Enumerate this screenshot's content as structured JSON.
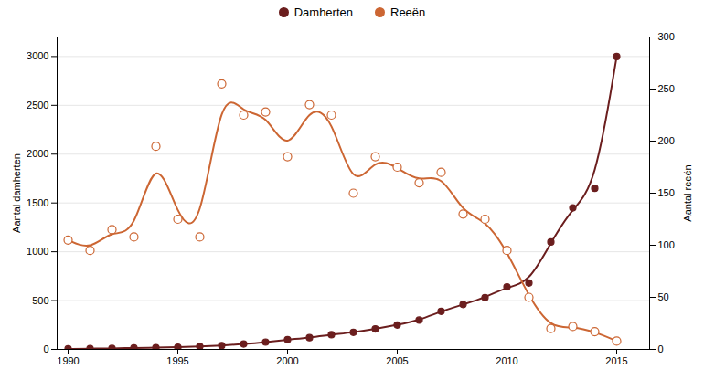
{
  "chart_data": {
    "type": "line",
    "x": [
      1990,
      1991,
      1992,
      1993,
      1994,
      1995,
      1996,
      1997,
      1998,
      1999,
      2000,
      2001,
      2002,
      2003,
      2004,
      2005,
      2006,
      2007,
      2008,
      2009,
      2010,
      2011,
      2012,
      2013,
      2014,
      2015
    ],
    "series": [
      {
        "name": "Damherten",
        "color": "#6B1E1E",
        "marker": "circle",
        "axis": "y",
        "values": [
          5,
          8,
          10,
          15,
          18,
          22,
          30,
          40,
          55,
          75,
          100,
          120,
          150,
          175,
          210,
          250,
          300,
          390,
          460,
          530,
          640,
          680,
          1100,
          1450,
          1650,
          3000
        ]
      },
      {
        "name": "Reeën",
        "color": "#CC6633",
        "marker": "circle",
        "axis": "y2",
        "values": [
          105,
          95,
          115,
          108,
          195,
          125,
          108,
          255,
          225,
          228,
          185,
          235,
          225,
          150,
          185,
          175,
          160,
          170,
          130,
          125,
          95,
          50,
          20,
          22,
          17,
          8
        ]
      }
    ],
    "ylabel": "Aantal damherten",
    "y2label": "Aantal reeën",
    "xlim": [
      1989.5,
      2016.5
    ],
    "xticks": [
      1990,
      1995,
      2000,
      2005,
      2010,
      2015
    ],
    "ylim": [
      0,
      3200
    ],
    "yticks": [
      0,
      500,
      1000,
      1500,
      2000,
      2500,
      3000
    ],
    "y2lim": [
      0,
      300
    ],
    "y2ticks": [
      0,
      50,
      100,
      150,
      200,
      250,
      300
    ],
    "grid": true,
    "legend": "top"
  }
}
